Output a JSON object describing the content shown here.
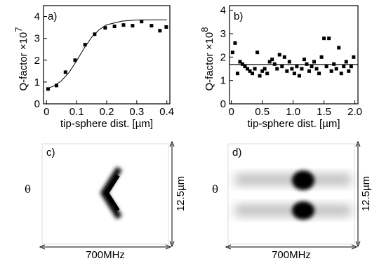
{
  "chart_data": [
    {
      "type": "scatter",
      "panel_label": "a)",
      "y_label": "Q-factor ×10",
      "y_label_exp": "7",
      "x_label": "tip-sphere dist.  [µm]",
      "x": [
        0.005,
        0.033,
        0.063,
        0.095,
        0.128,
        0.16,
        0.195,
        0.226,
        0.256,
        0.286,
        0.316,
        0.349,
        0.377,
        0.398
      ],
      "values": [
        0.68,
        0.84,
        1.45,
        2.0,
        2.71,
        3.19,
        3.48,
        3.55,
        3.61,
        3.58,
        3.77,
        3.58,
        3.35,
        3.52
      ],
      "color": "#000000",
      "fit": {
        "x": [
          0,
          0.025,
          0.05,
          0.075,
          0.1,
          0.125,
          0.15,
          0.175,
          0.2,
          0.25,
          0.3,
          0.35,
          0.4
        ],
        "values": [
          0.69,
          0.82,
          1.06,
          1.44,
          1.97,
          2.55,
          3.05,
          3.4,
          3.62,
          3.79,
          3.84,
          3.85,
          3.85
        ]
      },
      "xlim": [
        -0.01,
        0.41
      ],
      "ylim": [
        0,
        4.5
      ],
      "xticks": [
        0,
        0.1,
        0.2,
        0.3,
        0.4
      ],
      "yticks": [
        0,
        1,
        2,
        3,
        4
      ]
    },
    {
      "type": "scatter",
      "panel_label": "b)",
      "y_label": "Q-factor ×10",
      "y_label_exp": "8",
      "x_label": "tip-sphere dist.  [µm]",
      "x": [
        0.02,
        0.06,
        0.1,
        0.14,
        0.18,
        0.22,
        0.26,
        0.3,
        0.34,
        0.38,
        0.42,
        0.46,
        0.5,
        0.54,
        0.58,
        0.62,
        0.66,
        0.7,
        0.74,
        0.78,
        0.82,
        0.86,
        0.9,
        0.94,
        0.98,
        1.02,
        1.06,
        1.1,
        1.14,
        1.18,
        1.22,
        1.26,
        1.3,
        1.34,
        1.38,
        1.42,
        1.46,
        1.5,
        1.54,
        1.58,
        1.62,
        1.66,
        1.7,
        1.74,
        1.78,
        1.82,
        1.86,
        1.9,
        1.94,
        1.98
      ],
      "values": [
        2.2,
        2.6,
        1.3,
        1.8,
        1.7,
        1.6,
        1.5,
        1.4,
        1.3,
        1.5,
        2.2,
        1.2,
        1.4,
        1.5,
        1.3,
        1.8,
        1.9,
        1.7,
        1.5,
        2.1,
        1.6,
        2.0,
        1.4,
        1.8,
        1.5,
        1.3,
        1.6,
        1.2,
        1.5,
        1.9,
        1.7,
        1.4,
        1.6,
        1.8,
        1.5,
        1.3,
        2.0,
        2.8,
        1.6,
        2.8,
        1.4,
        1.7,
        1.5,
        2.4,
        1.3,
        1.6,
        1.8,
        1.4,
        1.6,
        2.0
      ],
      "color": "#000000",
      "reference_line": 1.68,
      "xlim": [
        -0.03,
        2.05
      ],
      "ylim": [
        0,
        4.2
      ],
      "xticks": [
        0,
        0.5,
        {
          "value": 1,
          "label": "1.0"
        },
        1.5,
        {
          "value": 2,
          "label": "2.0"
        }
      ],
      "yticks": [
        0,
        1,
        2,
        3,
        4
      ]
    }
  ],
  "images": [
    {
      "panel_label": "c)",
      "y_label": "θ",
      "height_label": "12.5µm",
      "width_label": "700MHz"
    },
    {
      "panel_label": "d)",
      "y_label": "θ",
      "height_label": "12.5µm",
      "width_label": "700MHz"
    }
  ]
}
